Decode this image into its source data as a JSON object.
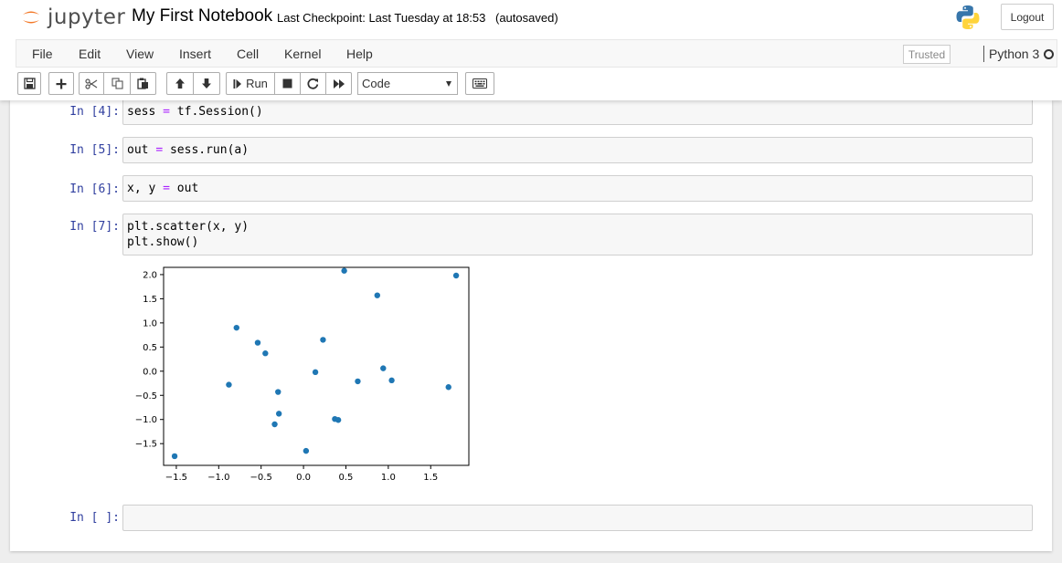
{
  "header": {
    "logo_text": "jupyter",
    "notebook_name": "My First Notebook",
    "checkpoint": "Last Checkpoint: Last Tuesday at 18:53",
    "autosave": "(autosaved)",
    "logout_label": "Logout"
  },
  "menubar": {
    "items": [
      "File",
      "Edit",
      "View",
      "Insert",
      "Cell",
      "Kernel",
      "Help"
    ],
    "trusted_label": "Trusted",
    "kernel_name": "Python 3"
  },
  "toolbar": {
    "buttons": [
      "save-icon",
      "plus-icon",
      "cut-icon",
      "copy-icon",
      "paste-icon",
      "arrow-up-icon",
      "arrow-down-icon",
      "run-icon",
      "stop-icon",
      "restart-icon",
      "fast-forward-icon",
      "keyboard-icon"
    ],
    "run_label": "Run",
    "cell_type": "Code"
  },
  "cells": [
    {
      "prompt": "In [4]:",
      "code": [
        "sess = tf.Session()"
      ]
    },
    {
      "prompt": "In [5]:",
      "code": [
        "out = sess.run(a)"
      ]
    },
    {
      "prompt": "In [6]:",
      "code": [
        "x, y = out"
      ]
    },
    {
      "prompt": "In [7]:",
      "code": [
        "plt.scatter(x, y)",
        "plt.show()"
      ]
    },
    {
      "prompt": "In [ ]:",
      "code": [
        ""
      ]
    }
  ],
  "colors": {
    "prompt": "#303f9f",
    "operator": "#aa22ff",
    "point": "#1f77b4",
    "jupyter_orange": "#f37726"
  },
  "chart_data": {
    "type": "scatter",
    "title": "",
    "xlabel": "",
    "ylabel": "",
    "xlim": [
      -1.65,
      1.95
    ],
    "ylim": [
      -1.95,
      2.15
    ],
    "xticks": [
      -1.5,
      -1.0,
      -0.5,
      0.0,
      0.5,
      1.0,
      1.5
    ],
    "yticks": [
      -1.5,
      -1.0,
      -0.5,
      0.0,
      0.5,
      1.0,
      1.5,
      2.0
    ],
    "xtick_labels": [
      "−1.5",
      "−1.0",
      "−0.5",
      "0.0",
      "0.5",
      "1.0",
      "1.5"
    ],
    "ytick_labels": [
      "−1.5",
      "−1.0",
      "−0.5",
      "0.0",
      "0.5",
      "1.0",
      "1.5",
      "2.0"
    ],
    "points": [
      {
        "x": -1.52,
        "y": -1.76
      },
      {
        "x": -0.88,
        "y": -0.28
      },
      {
        "x": -0.79,
        "y": 0.9
      },
      {
        "x": -0.54,
        "y": 0.59
      },
      {
        "x": -0.45,
        "y": 0.37
      },
      {
        "x": -0.34,
        "y": -1.1
      },
      {
        "x": -0.3,
        "y": -0.43
      },
      {
        "x": -0.29,
        "y": -0.88
      },
      {
        "x": 0.03,
        "y": -1.65
      },
      {
        "x": 0.14,
        "y": -0.02
      },
      {
        "x": 0.23,
        "y": 0.65
      },
      {
        "x": 0.37,
        "y": -0.99
      },
      {
        "x": 0.41,
        "y": -1.01
      },
      {
        "x": 0.48,
        "y": 2.08
      },
      {
        "x": 0.64,
        "y": -0.21
      },
      {
        "x": 0.87,
        "y": 1.57
      },
      {
        "x": 0.94,
        "y": 0.06
      },
      {
        "x": 1.04,
        "y": -0.19
      },
      {
        "x": 1.71,
        "y": -0.33
      },
      {
        "x": 1.8,
        "y": 1.98
      }
    ],
    "grid": false
  }
}
